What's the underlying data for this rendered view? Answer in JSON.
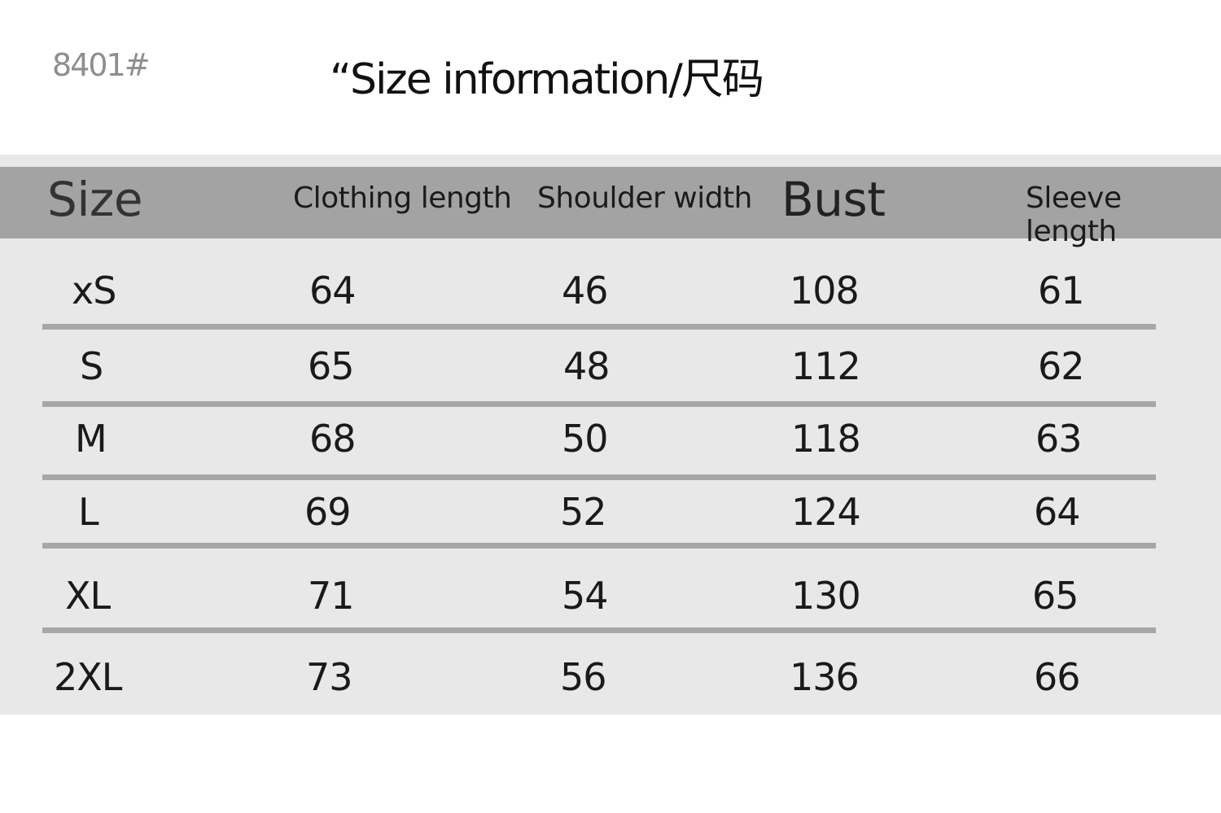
{
  "product_code": "8401#",
  "title": "“Size information/尺码",
  "table": {
    "headers": [
      "Size",
      "Clothing length",
      "Shoulder width",
      "Bust",
      "Sleeve length"
    ],
    "rows": [
      [
        "xS",
        "64",
        "46",
        "108",
        "61"
      ],
      [
        "S",
        "65",
        "48",
        "112",
        "62"
      ],
      [
        "M",
        "68",
        "50",
        "118",
        "63"
      ],
      [
        "L",
        "69",
        "52",
        "124",
        "64"
      ],
      [
        "XL",
        "71",
        "54",
        "130",
        "65"
      ],
      [
        "2XL",
        "73",
        "56",
        "136",
        "66"
      ]
    ]
  },
  "colors": {
    "header_band": "#a3a3a4",
    "table_bg": "#e9e8e9",
    "row_divider": "#a7a7a9"
  }
}
